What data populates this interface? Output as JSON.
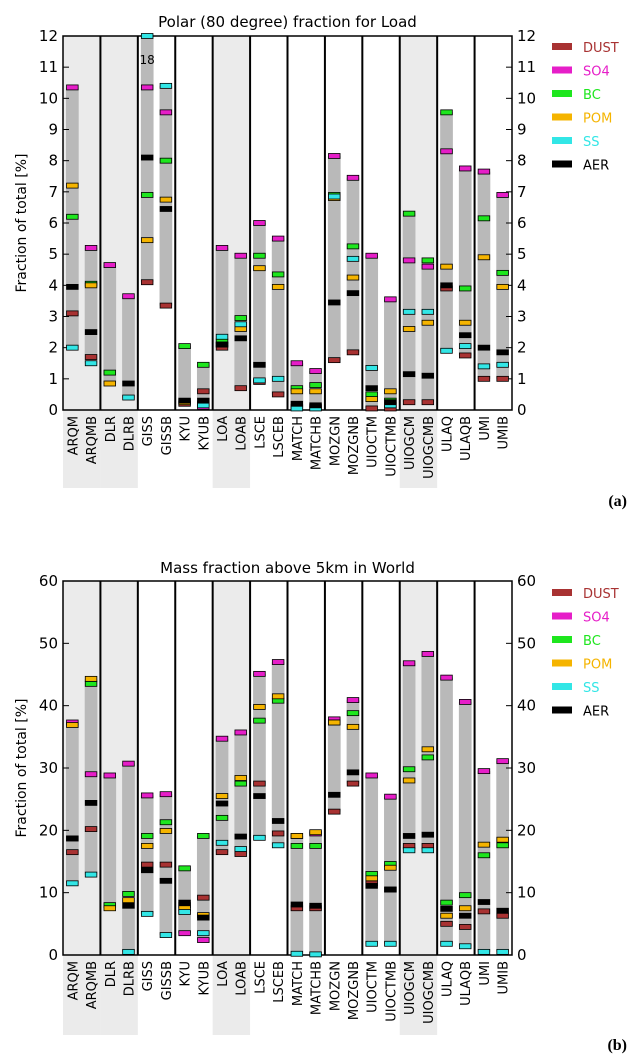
{
  "colors": {
    "DUST": "#a83232",
    "SO4": "#e61ec8",
    "BC": "#1ee61e",
    "POM": "#f5b400",
    "SS": "#32e6e6",
    "AER": "#000000",
    "range_bar": "#b9b9b9",
    "shade": "#ebebeb"
  },
  "panel_labels": [
    "(a)",
    "(b)"
  ],
  "chart_data": [
    {
      "type": "range-bar",
      "title": "Polar (80 degree) fraction for Load",
      "ylabel": "Fraction of total [%]",
      "ylim": [
        0,
        12
      ],
      "yticks": [
        "0",
        "1",
        "2",
        "3",
        "4",
        "5",
        "6",
        "7",
        "8",
        "9",
        "10",
        "11",
        "12"
      ],
      "categories": [
        "ARQM",
        "ARQMB",
        "DLR",
        "DLRB",
        "GISS",
        "GISSB",
        "KYU",
        "KYUB",
        "LOA",
        "LOAB",
        "LSCE",
        "LSCEB",
        "MATCH",
        "MATCHB",
        "MOZGN",
        "MOZGNB",
        "UIOCTM",
        "UIOCTMB",
        "UIOGCM",
        "UIOGCMB",
        "ULAQ",
        "ULAQB",
        "UMI",
        "UMIB"
      ],
      "legend": [
        "DUST",
        "SO4",
        "BC",
        "POM",
        "SS",
        "AER"
      ],
      "legend_position": "right",
      "annotations": [
        {
          "category": "GISS",
          "text": "18"
        }
      ],
      "series": [
        {
          "name": "DUST",
          "values": [
            3.1,
            1.7,
            null,
            null,
            4.1,
            3.35,
            0.2,
            0.6,
            2.0,
            0.7,
            0.9,
            0.5,
            0.1,
            0.1,
            1.6,
            1.85,
            0.05,
            0.05,
            0.25,
            0.25,
            3.9,
            1.75,
            1.0,
            1.0
          ]
        },
        {
          "name": "SO4",
          "values": [
            10.35,
            5.2,
            4.65,
            3.65,
            10.35,
            9.55,
            null,
            0.1,
            5.2,
            4.95,
            6.0,
            5.5,
            1.5,
            1.25,
            8.15,
            7.45,
            4.95,
            3.55,
            4.8,
            4.6,
            8.3,
            7.75,
            7.65,
            6.9
          ]
        },
        {
          "name": "BC",
          "values": [
            6.2,
            4.05,
            1.2,
            null,
            6.9,
            8.0,
            2.05,
            1.45,
            2.2,
            2.95,
            4.95,
            4.35,
            0.7,
            0.8,
            6.9,
            5.25,
            0.5,
            0.3,
            6.3,
            4.8,
            9.55,
            3.9,
            6.15,
            4.4
          ]
        },
        {
          "name": "POM",
          "values": [
            7.2,
            4.0,
            0.85,
            null,
            5.45,
            6.75,
            0.25,
            0.2,
            2.1,
            2.6,
            4.55,
            3.95,
            0.6,
            0.6,
            6.8,
            4.25,
            0.35,
            0.6,
            2.6,
            2.8,
            4.6,
            2.8,
            4.9,
            3.95
          ]
        },
        {
          "name": "SS",
          "values": [
            2.0,
            1.5,
            null,
            0.4,
            12.0,
            10.4,
            null,
            0.15,
            2.35,
            2.75,
            0.95,
            1.0,
            0.05,
            0.05,
            6.85,
            4.85,
            1.35,
            0.15,
            3.15,
            3.15,
            1.9,
            2.05,
            1.4,
            1.45
          ]
        },
        {
          "name": "AER",
          "values": [
            3.95,
            2.5,
            null,
            0.85,
            8.1,
            6.45,
            0.3,
            0.3,
            2.1,
            2.3,
            1.45,
            null,
            0.2,
            0.15,
            3.45,
            3.75,
            0.7,
            0.25,
            1.15,
            1.1,
            4.0,
            2.4,
            2.0,
            1.85
          ]
        }
      ]
    },
    {
      "type": "range-bar",
      "title": "Mass fraction above 5km in World",
      "ylabel": "Fraction of total [%]",
      "ylim": [
        0,
        60
      ],
      "yticks": [
        "0",
        "10",
        "20",
        "30",
        "40",
        "50",
        "60"
      ],
      "categories": [
        "ARQM",
        "ARQMB",
        "DLR",
        "DLRB",
        "GISS",
        "GISSB",
        "KYU",
        "KYUB",
        "LOA",
        "LOAB",
        "LSCE",
        "LSCEB",
        "MATCH",
        "MATCHB",
        "MOZGN",
        "MOZGNB",
        "UIOCTM",
        "UIOCTMB",
        "UIOGCM",
        "UIOGCMB",
        "ULAQ",
        "ULAQB",
        "UMI",
        "UMIB"
      ],
      "legend": [
        "DUST",
        "SO4",
        "BC",
        "POM",
        "SS",
        "AER"
      ],
      "legend_position": "right",
      "annotations": [],
      "series": [
        {
          "name": "DUST",
          "values": [
            16.5,
            20.2,
            null,
            null,
            14.5,
            14.5,
            8.0,
            9.2,
            16.5,
            16.2,
            27.5,
            19.5,
            7.5,
            7.5,
            23.0,
            27.5,
            11.5,
            10.5,
            17.5,
            17.5,
            5.0,
            4.5,
            7.0,
            6.3
          ]
        },
        {
          "name": "SO4",
          "values": [
            37.3,
            29.0,
            28.8,
            30.7,
            25.6,
            25.8,
            3.5,
            2.4,
            34.7,
            35.7,
            45.1,
            47.0,
            19.1,
            19.5,
            37.8,
            40.9,
            28.8,
            25.4,
            46.8,
            48.3,
            44.5,
            40.6,
            29.5,
            31.1
          ]
        },
        {
          "name": "BC",
          "values": [
            18.7,
            43.5,
            8.0,
            9.8,
            19.1,
            21.3,
            13.9,
            19.1,
            22.0,
            27.5,
            37.6,
            40.8,
            17.5,
            17.5,
            37.3,
            38.8,
            13.0,
            14.6,
            29.8,
            31.7,
            8.4,
            9.6,
            16.0,
            17.6
          ]
        },
        {
          "name": "POM",
          "values": [
            36.9,
            44.3,
            7.5,
            8.8,
            17.5,
            19.9,
            7.5,
            6.4,
            25.5,
            28.4,
            39.8,
            41.5,
            19.1,
            19.7,
            37.3,
            36.6,
            12.3,
            14.0,
            28.0,
            33.0,
            6.3,
            7.5,
            17.7,
            18.5
          ]
        },
        {
          "name": "SS",
          "values": [
            11.5,
            12.9,
            null,
            0.5,
            6.6,
            3.2,
            6.9,
            3.5,
            18.0,
            17.0,
            18.8,
            17.6,
            0.2,
            0.1,
            null,
            null,
            1.8,
            1.8,
            16.8,
            16.8,
            1.8,
            1.4,
            0.5,
            0.5
          ]
        },
        {
          "name": "AER",
          "values": [
            18.7,
            24.4,
            null,
            7.9,
            13.6,
            11.9,
            8.4,
            6.0,
            24.3,
            19.0,
            25.5,
            21.5,
            8.1,
            7.9,
            25.7,
            29.3,
            11.1,
            10.5,
            19.1,
            19.3,
            7.4,
            6.3,
            8.5,
            7.1
          ]
        }
      ]
    }
  ]
}
